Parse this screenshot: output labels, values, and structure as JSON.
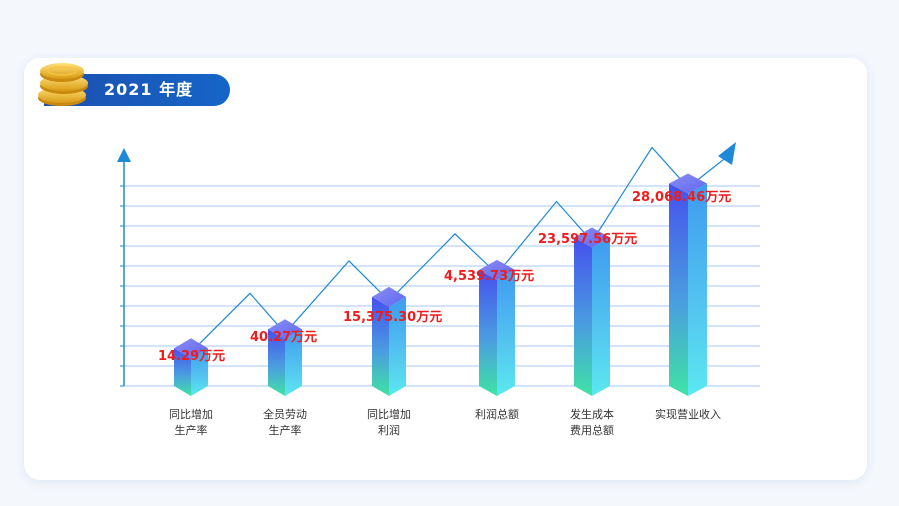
{
  "header": {
    "year_label": "2021 年度"
  },
  "colors": {
    "accent": "#1d4fae",
    "value_label": "#ee1c1c",
    "axis": "#1e88d9",
    "grid": "#a8c8ec",
    "bar_top": "#4b5ef0",
    "bar_bottom": "#3fe0a8",
    "trend": "#1e88d9"
  },
  "chart_data": {
    "type": "bar",
    "categories": [
      [
        "同比增加",
        "生产率"
      ],
      [
        "全员劳动",
        "生产率"
      ],
      [
        "同比增加",
        "利润"
      ],
      [
        "利润总额"
      ],
      [
        "发生成本",
        "费用总额"
      ],
      [
        "实现营业收入"
      ]
    ],
    "value_labels": [
      "14.29万元",
      "40.27万元",
      "15,375.30万元",
      "4,539.73万元",
      "23,597.56万元",
      "28,068.46万元"
    ],
    "relative_heights": [
      0.14,
      0.21,
      0.33,
      0.43,
      0.55,
      0.75
    ],
    "grid": true,
    "trend_arrows": true
  }
}
